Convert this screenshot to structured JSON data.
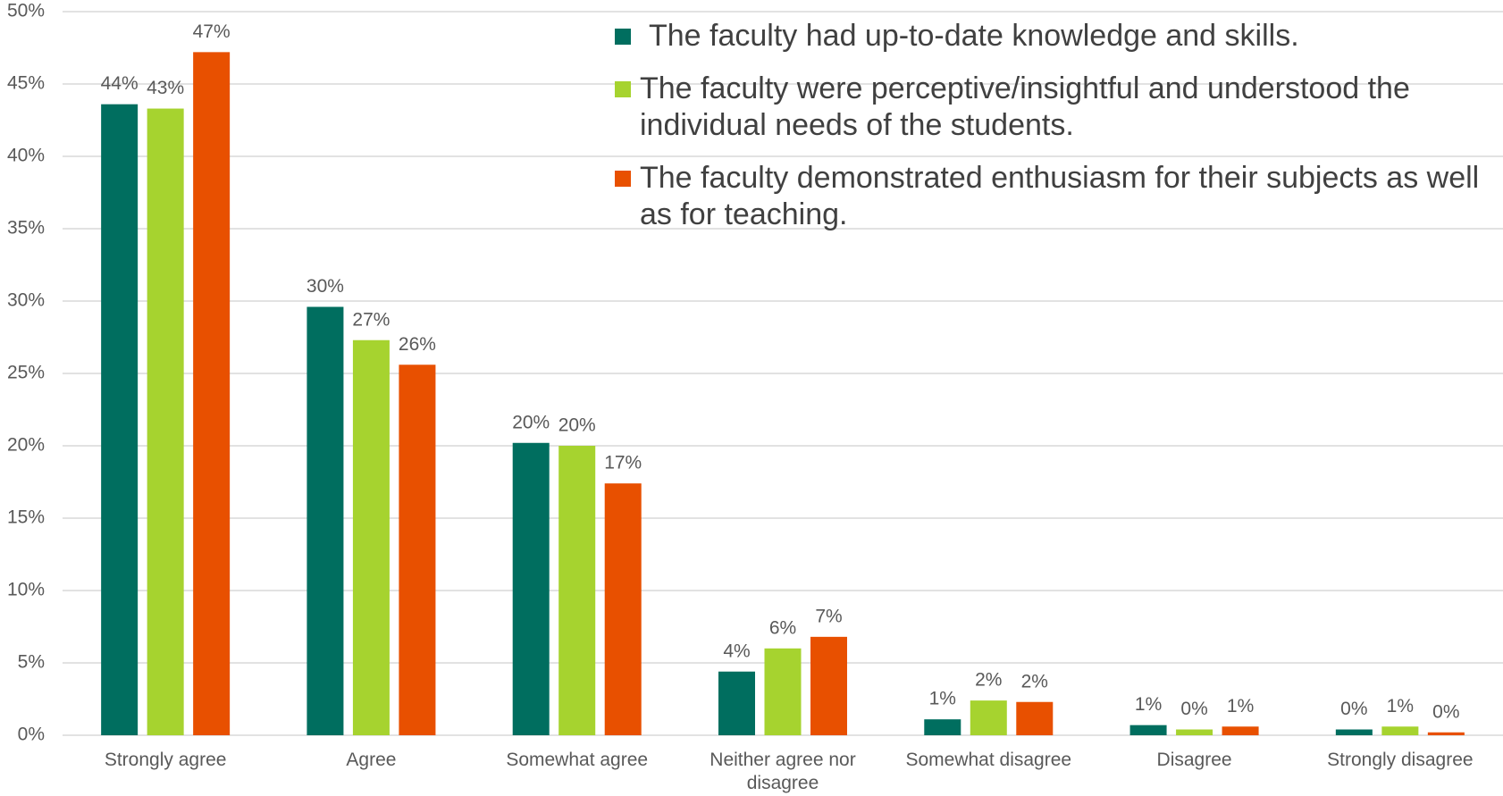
{
  "chart_data": {
    "type": "bar",
    "categories": [
      "Strongly agree",
      "Agree",
      "Somewhat agree",
      "Neither agree nor disagree",
      "Somewhat disagree",
      "Disagree",
      "Strongly disagree"
    ],
    "series": [
      {
        "name": "The faculty had up-to-date knowledge and skills.",
        "color": "#006e5f",
        "values": [
          43.6,
          29.6,
          20.2,
          4.4,
          1.1,
          0.7,
          0.4
        ],
        "value_labels": [
          "44%",
          "30%",
          "20%",
          "4%",
          "1%",
          "1%",
          "0%"
        ]
      },
      {
        "name": "The faculty were perceptive/insightful and understood the individual needs of the students.",
        "color": "#a6d32f",
        "values": [
          43.3,
          27.3,
          20.0,
          6.0,
          2.4,
          0.4,
          0.6
        ],
        "value_labels": [
          "43%",
          "27%",
          "20%",
          "6%",
          "2%",
          "0%",
          "1%"
        ]
      },
      {
        "name": "The faculty demonstrated enthusiasm for their subjects as well as for teaching.",
        "color": "#e85000",
        "values": [
          47.2,
          25.6,
          17.4,
          6.8,
          2.3,
          0.6,
          0.2
        ],
        "value_labels": [
          "47%",
          "26%",
          "17%",
          "7%",
          "2%",
          "1%",
          "0%"
        ]
      }
    ],
    "ylim": [
      0,
      50
    ],
    "yticks": [
      {
        "value": 0,
        "label": "0%"
      },
      {
        "value": 5,
        "label": "5%"
      },
      {
        "value": 10,
        "label": "10%"
      },
      {
        "value": 15,
        "label": "15%"
      },
      {
        "value": 20,
        "label": "20%"
      },
      {
        "value": 25,
        "label": "25%"
      },
      {
        "value": 30,
        "label": "30%"
      },
      {
        "value": 35,
        "label": "35%"
      },
      {
        "value": 40,
        "label": "40%"
      },
      {
        "value": 45,
        "label": "45%"
      },
      {
        "value": 50,
        "label": "50%"
      }
    ],
    "grid": true,
    "legend": "top-right"
  }
}
